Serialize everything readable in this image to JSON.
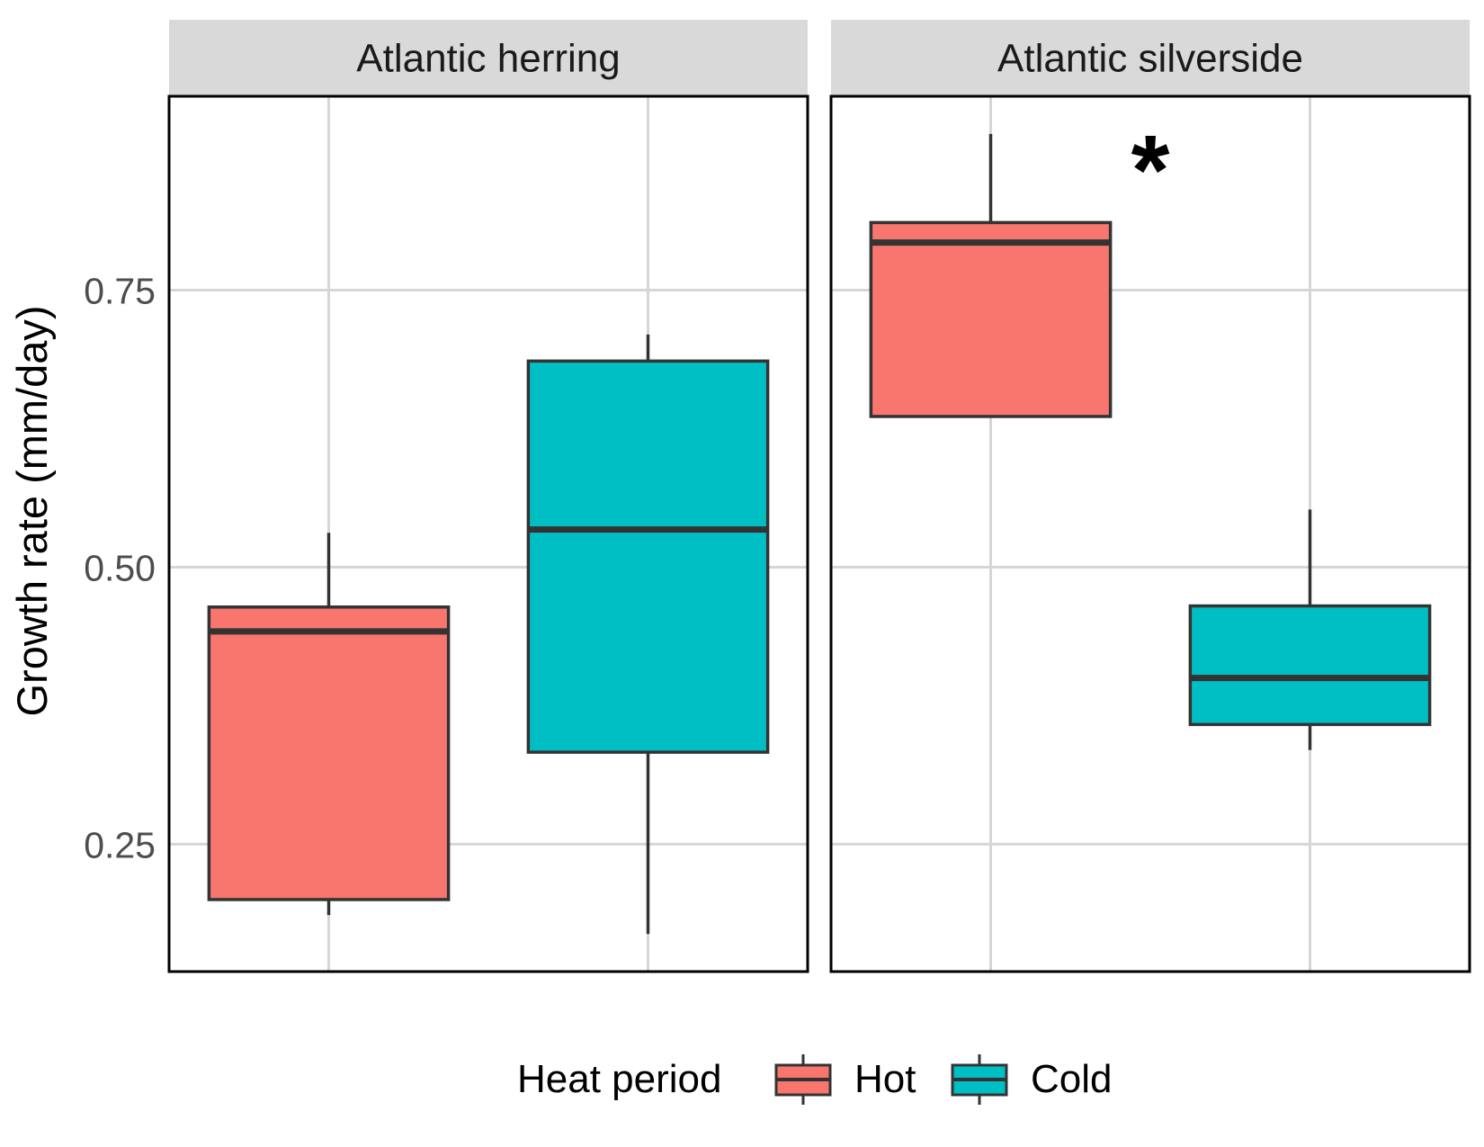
{
  "chart_data": {
    "type": "boxplot",
    "ylabel": "Growth rate (mm/day)",
    "y_ticks": [
      "0.25",
      "0.50",
      "0.75"
    ],
    "ylim": [
      0.135,
      0.925
    ],
    "grid": true,
    "legend": {
      "title": "Heat period",
      "position": "bottom",
      "entries": [
        {
          "label": "Hot",
          "color": "#F8766D"
        },
        {
          "label": "Cold",
          "color": "#00BFC4"
        }
      ]
    },
    "panels": [
      {
        "title": "Atlantic herring",
        "annotation": "",
        "boxes": [
          {
            "group": "Hot",
            "lower_whisker": 0.186,
            "q1": 0.2,
            "median": 0.442,
            "q3": 0.464,
            "upper_whisker": 0.531
          },
          {
            "group": "Cold",
            "lower_whisker": 0.169,
            "q1": 0.333,
            "median": 0.534,
            "q3": 0.686,
            "upper_whisker": 0.71
          }
        ]
      },
      {
        "title": "Atlantic silverside",
        "annotation": "*",
        "boxes": [
          {
            "group": "Hot",
            "lower_whisker": null,
            "q1": 0.636,
            "median": 0.793,
            "q3": 0.811,
            "upper_whisker": 0.891
          },
          {
            "group": "Cold",
            "lower_whisker": 0.335,
            "q1": 0.358,
            "median": 0.4,
            "q3": 0.465,
            "upper_whisker": 0.552
          }
        ]
      }
    ]
  }
}
